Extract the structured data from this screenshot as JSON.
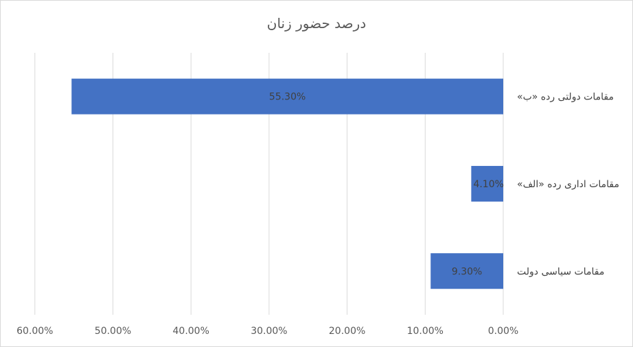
{
  "chart_data": {
    "type": "bar",
    "orientation": "horizontal",
    "x_reversed": true,
    "title": "درصد حضور زنان",
    "categories": [
      "مقامات دولتی رده «ب»",
      "مقامات اداری رده «الف»",
      "مقامات سیاسی دولت"
    ],
    "values": [
      55.3,
      4.1,
      9.3
    ],
    "data_labels": [
      "55.30%",
      "4.10%",
      "9.30%"
    ],
    "xlim": [
      0,
      60
    ],
    "x_ticks": [
      60,
      50,
      40,
      30,
      20,
      10,
      0
    ],
    "x_tick_labels": [
      "60.00%",
      "50.00%",
      "40.00%",
      "30.00%",
      "20.00%",
      "10.00%",
      "0.00%"
    ],
    "grid": true,
    "legend": "none",
    "bar_color": "#4472c4",
    "grid_color": "#d9d9d9"
  }
}
